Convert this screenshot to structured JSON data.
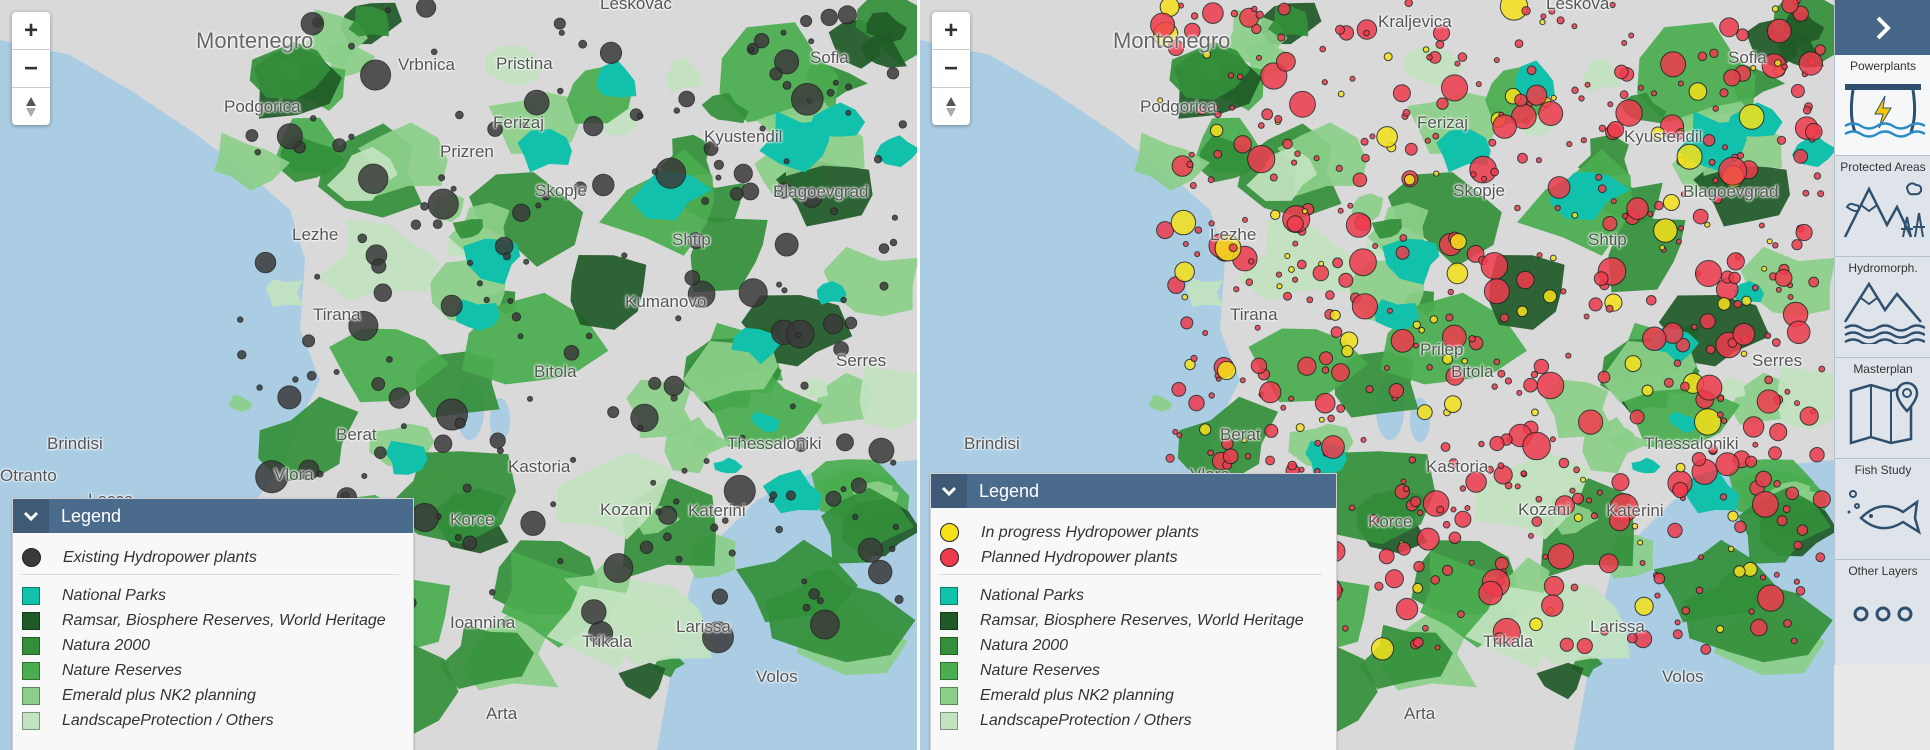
{
  "zoom": {
    "zoom_in": "+",
    "zoom_out": "−",
    "compass": "▲▼"
  },
  "colors": {
    "sea": "#aacde3",
    "land": "#d9d9d9",
    "national_parks": "#12c1ab",
    "ramsar": "#1f5a27",
    "natura2000": "#338f39",
    "nature_reserves": "#4aad4f",
    "emerald": "#8bcf89",
    "landscape": "#c2e3bf",
    "existing": "#3a3a3a",
    "in_progress": "#f5e11a",
    "planned": "#ef3b4d",
    "legend_header": "#4b6b8c",
    "sidebar_header": "#46668a"
  },
  "left_map": {
    "places": [
      "Montenegro",
      "Podgorica",
      "Pristina",
      "Ferizaj",
      "Skopje",
      "Shtip",
      "Sofia",
      "Kyustendil",
      "Blagoevgrad",
      "Tirana",
      "Berat",
      "Vlora",
      "Brindisi",
      "Lecce",
      "Kastoria",
      "Bitola",
      "Kozani",
      "Katerini",
      "Thessaloniki",
      "Serres",
      "Trikala",
      "Larissa",
      "Volos",
      "Arta",
      "Ioannina",
      "Leskovac",
      "Prizren",
      "Lezhe",
      "Kumanovo",
      "Otranto",
      "Korce",
      "Vrbnica"
    ],
    "legend": {
      "title": "Legend",
      "points": [
        {
          "label": "Existing Hydropower plants",
          "color_key": "existing"
        }
      ],
      "areas": [
        {
          "label": "National Parks",
          "color_key": "national_parks"
        },
        {
          "label": "Ramsar, Biosphere Reserves, World Heritage",
          "color_key": "ramsar"
        },
        {
          "label": "Natura 2000",
          "color_key": "natura2000"
        },
        {
          "label": "Nature Reserves",
          "color_key": "nature_reserves"
        },
        {
          "label": "Emerald plus NK2 planning",
          "color_key": "emerald"
        },
        {
          "label": "LandscapeProtection / Others",
          "color_key": "landscape"
        }
      ]
    }
  },
  "right_map": {
    "places": [
      "Montenegro",
      "Podgorica",
      "Skopje",
      "Ferizaj",
      "Kyustendil",
      "Blagoevgrad",
      "Shtip",
      "Sofia",
      "Leskova",
      "Kraljevica",
      "Lezhe",
      "Tirana",
      "Bitola",
      "Berat",
      "Kastoria",
      "Brindisi",
      "Vlora",
      "Kozani",
      "Katerini",
      "Serres",
      "Thessaloniki",
      "Trikala",
      "Larissa",
      "Volos",
      "Arta",
      "Prilep",
      "Korce"
    ],
    "legend": {
      "title": "Legend",
      "points": [
        {
          "label": "In progress Hydropower plants",
          "color_key": "in_progress"
        },
        {
          "label": "Planned Hydropower plants",
          "color_key": "planned"
        }
      ],
      "areas": [
        {
          "label": "National Parks",
          "color_key": "national_parks"
        },
        {
          "label": "Ramsar, Biosphere Reserves, World Heritage",
          "color_key": "ramsar"
        },
        {
          "label": "Natura 2000",
          "color_key": "natura2000"
        },
        {
          "label": "Nature Reserves",
          "color_key": "nature_reserves"
        },
        {
          "label": "Emerald plus NK2 planning",
          "color_key": "emerald"
        },
        {
          "label": "LandscapeProtection / Others",
          "color_key": "landscape"
        }
      ]
    }
  },
  "sidebar": {
    "items": [
      {
        "label": "Powerplants",
        "icon": "hydropower-dam-icon",
        "active": true
      },
      {
        "label": "Protected Areas",
        "icon": "mountains-forest-icon",
        "active": false
      },
      {
        "label": "Hydromorph.",
        "icon": "mountains-waves-icon",
        "active": false
      },
      {
        "label": "Masterplan",
        "icon": "map-pin-icon",
        "active": false
      },
      {
        "label": "Fish Study",
        "icon": "fish-icon",
        "active": false
      },
      {
        "label": "Other Layers",
        "icon": "three-dots-icon",
        "active": false
      }
    ]
  }
}
